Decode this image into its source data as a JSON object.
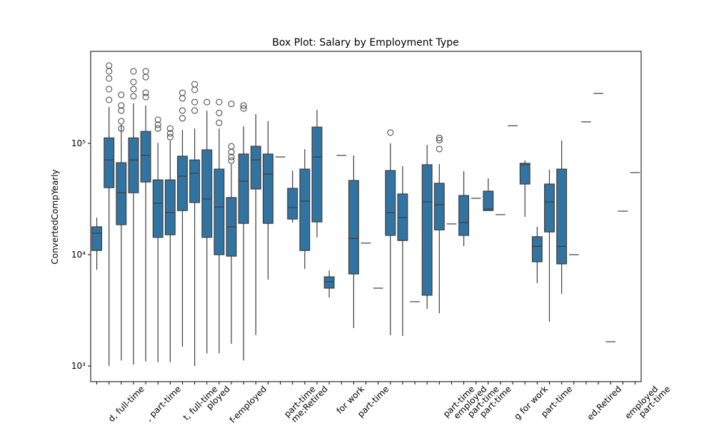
{
  "chart_data": {
    "type": "box",
    "title": "Box Plot: Salary by Employment Type",
    "y_label": "ConvertedCompYearly",
    "log_y": true,
    "color": "#3274a1",
    "categories": [
      null,
      "d, full-time",
      null,
      null,
      ", part-time",
      null,
      null,
      "t, full-time",
      "ployed",
      null,
      null,
      "f-employed",
      null,
      null,
      null,
      "part-time",
      "me;Retired",
      null,
      null,
      "for work",
      null,
      "part-time",
      null,
      null,
      null,
      null,
      null,
      null,
      "part-time",
      "employed",
      "part-time",
      "part-time",
      null,
      null,
      "g for work",
      null,
      "part-time",
      null,
      null,
      null,
      "ed,Retired",
      null,
      null,
      "employed",
      "part-time"
    ],
    "ylim": [
      723,
      671000
    ],
    "yticks": [
      {
        "value": 1000,
        "label": "10³"
      },
      {
        "value": 10000,
        "label": "10⁴"
      },
      {
        "value": 100000,
        "label": "10⁵"
      }
    ],
    "boxes": [
      {
        "low": 7300,
        "q1": 10900,
        "median": 15600,
        "q3": 17800,
        "high": 21500,
        "outliers": []
      },
      {
        "low": 1000,
        "q1": 40000,
        "median": 71000,
        "q3": 112000,
        "high": 212000,
        "outliers": [
          500000,
          444000,
          383000,
          307000,
          246000
        ]
      },
      {
        "low": 1120,
        "q1": 18600,
        "median": 36000,
        "q3": 67000,
        "high": 147000,
        "outliers": [
          273000,
          219000,
          197000,
          158000,
          136000
        ]
      },
      {
        "low": 1030,
        "q1": 36000,
        "median": 71000,
        "q3": 112000,
        "high": 229000,
        "outliers": [
          444000,
          356000,
          307000,
          265000
        ]
      },
      {
        "low": 1100,
        "q1": 45000,
        "median": 78000,
        "q3": 128000,
        "high": 219000,
        "outliers": [
          444000,
          394000,
          285000,
          261000
        ]
      },
      {
        "low": 1080,
        "q1": 14300,
        "median": 29000,
        "q3": 47000,
        "high": 101000,
        "outliers": [
          163000,
          147000,
          136000
        ]
      },
      {
        "low": 1080,
        "q1": 15100,
        "median": 23900,
        "q3": 47000,
        "high": 106000,
        "outliers": [
          136000,
          123000,
          114000
        ]
      },
      {
        "low": 1490,
        "q1": 24900,
        "median": 50700,
        "q3": 76700,
        "high": 132000,
        "outliers": [
          285000,
          254000,
          197000,
          168000
        ]
      },
      {
        "low": 1000,
        "q1": 29400,
        "median": 53800,
        "q3": 71000,
        "high": 136000,
        "outliers": [
          340000,
          303000,
          235000,
          197000
        ]
      },
      {
        "low": 1300,
        "q1": 14300,
        "median": 31600,
        "q3": 87500,
        "high": 197000,
        "outliers": [
          235000
        ]
      },
      {
        "low": 1300,
        "q1": 10000,
        "median": 26800,
        "q3": 58700,
        "high": 136000,
        "outliers": [
          235000,
          188000,
          153000
        ]
      },
      {
        "low": 1580,
        "q1": 9700,
        "median": 17800,
        "q3": 32600,
        "high": 65000,
        "outliers": [
          226000,
          94000,
          83500,
          75500,
          70000
        ]
      },
      {
        "low": 1120,
        "q1": 19100,
        "median": 45700,
        "q3": 80200,
        "high": 142000,
        "outliers": [
          219000,
          206000
        ]
      },
      {
        "low": 1890,
        "q1": 38900,
        "median": 71000,
        "q3": 94200,
        "high": 183000,
        "outliers": []
      },
      {
        "low": 5970,
        "q1": 19100,
        "median": 53000,
        "q3": 80200,
        "high": 158000,
        "outliers": []
      },
      {
        "low": 75500,
        "q1": 75500,
        "median": 75500,
        "q3": 75500,
        "high": 75500,
        "outliers": []
      },
      {
        "low": 19400,
        "q1": 20900,
        "median": 26500,
        "q3": 39400,
        "high": 57000,
        "outliers": []
      },
      {
        "low": 7450,
        "q1": 10900,
        "median": 30300,
        "q3": 58700,
        "high": 88900,
        "outliers": []
      },
      {
        "low": 14300,
        "q1": 19700,
        "median": 75500,
        "q3": 140000,
        "high": 200000,
        "outliers": []
      },
      {
        "low": 4120,
        "q1": 5000,
        "median": 5700,
        "q3": 6320,
        "high": 7220,
        "outliers": []
      },
      {
        "low": 78000,
        "q1": 78000,
        "median": 78000,
        "q3": 78000,
        "high": 78000,
        "outliers": []
      },
      {
        "low": 2190,
        "q1": 6710,
        "median": 14000,
        "q3": 46400,
        "high": 77800,
        "outliers": []
      },
      {
        "low": 12700,
        "q1": 12700,
        "median": 12700,
        "q3": 12700,
        "high": 12700,
        "outliers": []
      },
      {
        "low": 5000,
        "q1": 5000,
        "median": 5000,
        "q3": 5000,
        "high": 5000,
        "outliers": []
      },
      {
        "low": 1890,
        "q1": 14900,
        "median": 23900,
        "q3": 57000,
        "high": 100000,
        "outliers": [
          125000
        ]
      },
      {
        "low": 1860,
        "q1": 13400,
        "median": 21500,
        "q3": 35100,
        "high": 62400,
        "outliers": []
      },
      {
        "low": 3780,
        "q1": 3780,
        "median": 3780,
        "q3": 3780,
        "high": 3780,
        "outliers": []
      },
      {
        "low": 3260,
        "q1": 4320,
        "median": 29800,
        "q3": 64300,
        "high": 97000,
        "outliers": []
      },
      {
        "low": 2980,
        "q1": 16700,
        "median": 28100,
        "q3": 43800,
        "high": 65200,
        "outliers": [
          112000,
          107000,
          88900
        ]
      },
      {
        "low": 18900,
        "q1": 18900,
        "median": 18900,
        "q3": 18900,
        "high": 18900,
        "outliers": []
      },
      {
        "low": 11900,
        "q1": 14900,
        "median": 19400,
        "q3": 34000,
        "high": 56200,
        "outliers": []
      },
      {
        "low": 32100,
        "q1": 32100,
        "median": 32100,
        "q3": 32100,
        "high": 32100,
        "outliers": []
      },
      {
        "low": 24900,
        "q1": 24900,
        "median": 25700,
        "q3": 37200,
        "high": 48500,
        "outliers": []
      },
      {
        "low": 22900,
        "q1": 22900,
        "median": 22900,
        "q3": 22900,
        "high": 22900,
        "outliers": []
      },
      {
        "low": 144000,
        "q1": 144000,
        "median": 144000,
        "q3": 144000,
        "high": 144000,
        "outliers": []
      },
      {
        "low": 21900,
        "q1": 43100,
        "median": 64300,
        "q3": 66200,
        "high": 70200,
        "outliers": []
      },
      {
        "low": 5550,
        "q1": 8630,
        "median": 11900,
        "q3": 14500,
        "high": 17800,
        "outliers": []
      },
      {
        "low": 2500,
        "q1": 16000,
        "median": 29800,
        "q3": 43100,
        "high": 57900,
        "outliers": []
      },
      {
        "low": 4440,
        "q1": 8270,
        "median": 11900,
        "q3": 58700,
        "high": 106000,
        "outliers": []
      },
      {
        "low": 10000,
        "q1": 10000,
        "median": 10000,
        "q3": 10000,
        "high": 10000,
        "outliers": []
      },
      {
        "low": 156000,
        "q1": 156000,
        "median": 156000,
        "q3": 156000,
        "high": 156000,
        "outliers": []
      },
      {
        "low": 281000,
        "q1": 281000,
        "median": 281000,
        "q3": 281000,
        "high": 281000,
        "outliers": []
      },
      {
        "low": 1650,
        "q1": 1650,
        "median": 1650,
        "q3": 1650,
        "high": 1650,
        "outliers": []
      },
      {
        "low": 24600,
        "q1": 24600,
        "median": 24600,
        "q3": 24600,
        "high": 24600,
        "outliers": []
      },
      {
        "low": 54600,
        "q1": 54600,
        "median": 54600,
        "q3": 54600,
        "high": 54600,
        "outliers": []
      }
    ]
  }
}
